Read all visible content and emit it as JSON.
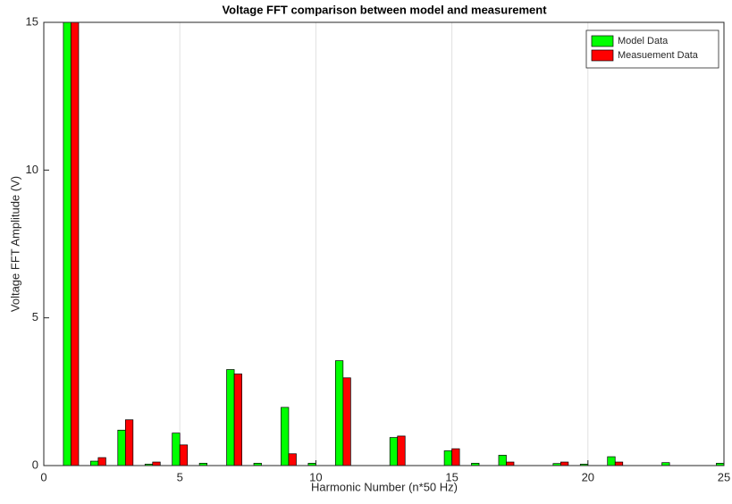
{
  "chart_data": {
    "type": "bar",
    "title": "Voltage FFT comparison between model and measurement",
    "x_label": "Harmonic Number (n*50 Hz)",
    "y_label": "Voltage FFT Amplitude (V)",
    "x": [
      1,
      2,
      3,
      4,
      5,
      6,
      7,
      8,
      9,
      10,
      11,
      12,
      13,
      14,
      15,
      16,
      17,
      18,
      19,
      20,
      21,
      22,
      23,
      24,
      25
    ],
    "series": [
      {
        "name": "Model Data",
        "color": "#00ff00",
        "values": [
          15,
          0.15,
          1.2,
          0.05,
          1.1,
          0.08,
          3.25,
          0.08,
          1.97,
          0.08,
          3.55,
          0,
          0.95,
          0,
          0.5,
          0.08,
          0.35,
          0,
          0.07,
          0.05,
          0.3,
          0,
          0.1,
          0,
          0.08
        ]
      },
      {
        "name": "Measuement Data",
        "color": "#ff0000",
        "values": [
          15,
          0.27,
          1.55,
          0.12,
          0.7,
          0,
          3.1,
          0,
          0.4,
          0,
          2.97,
          0,
          1.0,
          0,
          0.57,
          0,
          0.12,
          0,
          0.12,
          0,
          0.12,
          0,
          0,
          0,
          0
        ]
      }
    ],
    "xlim": [
      0,
      25
    ],
    "xticks": [
      0,
      5,
      10,
      15,
      20,
      25
    ],
    "ylim": [
      0,
      15
    ],
    "yticks": [
      0,
      5,
      10,
      15
    ],
    "grid": "x",
    "legend": "top-right"
  }
}
